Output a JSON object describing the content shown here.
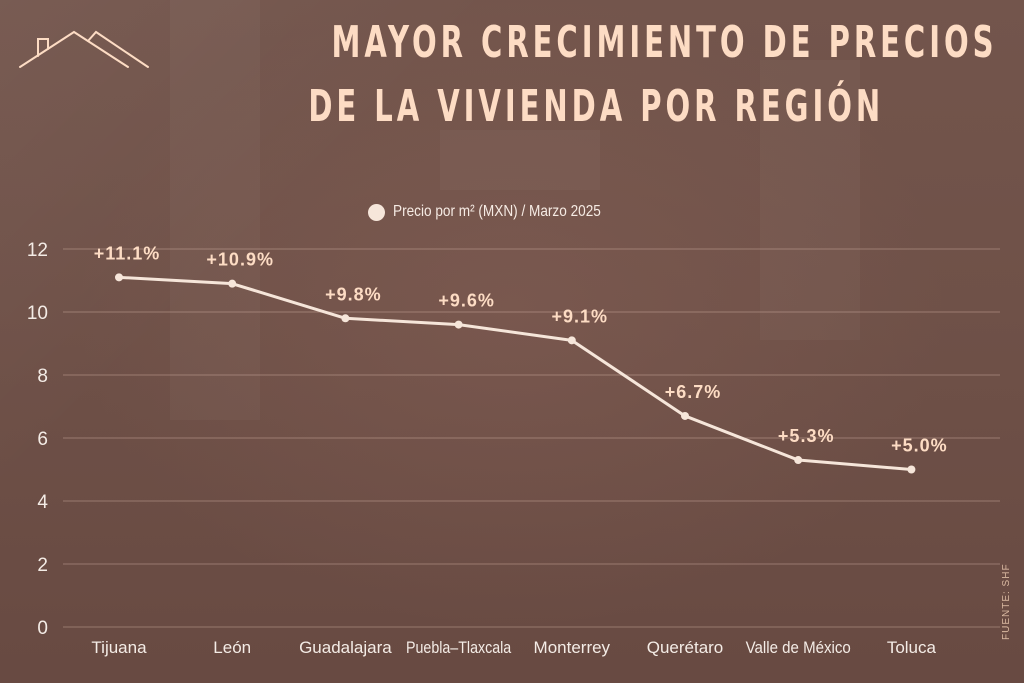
{
  "header": {
    "title_line1": "MAYOR CRECIMIENTO DE PRECIOS",
    "title_line2": "DE LA VIVIENDA POR REGIÓN",
    "logo_icon": "house-roof-icon"
  },
  "source": "FUENTE: SHF",
  "colors": {
    "background": "#6e5048",
    "title": "#fddcc4",
    "line": "#f6e6da",
    "labels": "#fddcc4",
    "ticks": "#f4ece6"
  },
  "chart_data": {
    "type": "line",
    "title": "MAYOR CRECIMIENTO DE PRECIOS DE LA VIVIENDA POR REGIÓN",
    "xlabel": "",
    "ylabel": "",
    "categories": [
      "Tijuana",
      "León",
      "Guadalajara",
      "Puebla–Tlaxcala",
      "Monterrey",
      "Querétaro",
      "Valle de México",
      "Toluca"
    ],
    "series": [
      {
        "name": "Precio por m² (MXN) / Marzo 2025",
        "values": [
          11.1,
          10.9,
          9.8,
          9.6,
          9.1,
          6.7,
          5.3,
          5.0
        ],
        "data_labels": [
          "+11.1%",
          "+10.9%",
          "+9.8%",
          "+9.6%",
          "+9.1%",
          "+6.7%",
          "+5.3%",
          "+5.0%"
        ]
      }
    ],
    "ylim": [
      0,
      12
    ],
    "yticks": [
      0,
      2,
      4,
      6,
      8,
      10,
      12
    ],
    "grid": true,
    "legend": {
      "position": "top-center",
      "entries": [
        "Precio por m² (MXN) / Marzo 2025"
      ]
    }
  }
}
